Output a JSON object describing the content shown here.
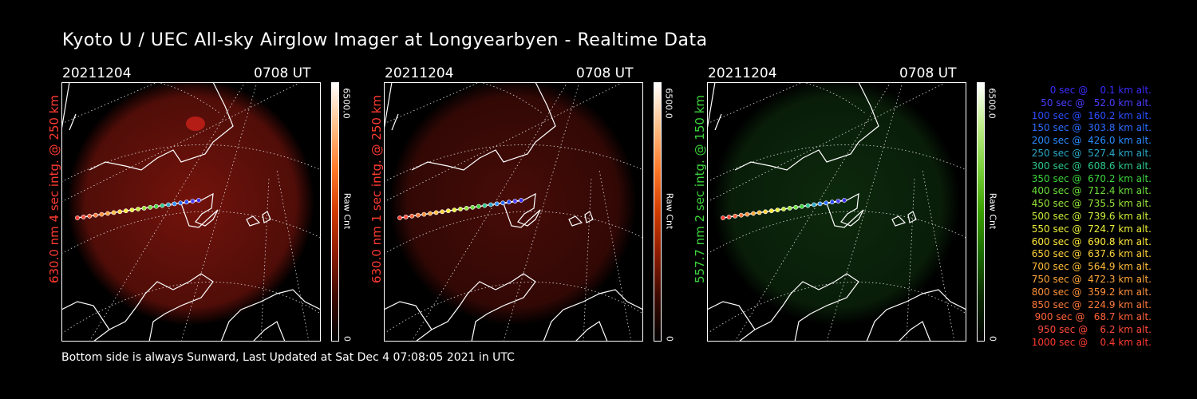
{
  "title": "Kyoto U / UEC All-sky Airglow Imager at Longyearbyen - Realtime Data",
  "footer": "Bottom side is always Sunward, Last Updated at Sat Dec  4 07:08:05 2021 in UTC",
  "panels": [
    {
      "date": "20211204",
      "time": "0708 UT",
      "side_label": "630.0 nm 4 sec intg. @ 250 km",
      "side_color": "#ff3b30",
      "glow_color": "#ff2a1a",
      "glow_strength": 0.45,
      "colorbar_max": "6500.0",
      "colorbar_min": "0",
      "colorbar_unit": "Raw Cnt",
      "colorbar_type": "red"
    },
    {
      "date": "20211204",
      "time": "0708 UT",
      "side_label": "630.0 nm 1 sec intg. @ 250 km",
      "side_color": "#ff3b30",
      "glow_color": "#ff2a1a",
      "glow_strength": 0.28,
      "colorbar_max": "6500.0",
      "colorbar_min": "0",
      "colorbar_unit": "Raw Cnt",
      "colorbar_type": "red"
    },
    {
      "date": "20211204",
      "time": "0708 UT",
      "side_label": "557.7 nm 2 sec intg. @ 150 km",
      "side_color": "#3cd43c",
      "glow_color": "#2a8a2a",
      "glow_strength": 0.3,
      "colorbar_max": "6500.0",
      "colorbar_min": "0",
      "colorbar_unit": "Raw Cnt",
      "colorbar_type": "green"
    }
  ],
  "legend": [
    {
      "text": "0 sec @    0.1 km alt.",
      "color": "#3a2cff"
    },
    {
      "text": "50 sec @   52.0 km alt.",
      "color": "#4a3cff"
    },
    {
      "text": "100 sec @  160.2 km alt.",
      "color": "#2a4cff"
    },
    {
      "text": "150 sec @  303.8 km alt.",
      "color": "#2a6cff"
    },
    {
      "text": "200 sec @  426.0 km alt.",
      "color": "#2a8cff"
    },
    {
      "text": "250 sec @  527.4 km alt.",
      "color": "#2aa8c8"
    },
    {
      "text": "300 sec @  608.6 km alt.",
      "color": "#2ac88a"
    },
    {
      "text": "350 sec @  670.2 km alt.",
      "color": "#3cd43c"
    },
    {
      "text": "400 sec @  712.4 km alt.",
      "color": "#6ade3a"
    },
    {
      "text": "450 sec @  735.5 km alt.",
      "color": "#96e43a"
    },
    {
      "text": "500 sec @  739.6 km alt.",
      "color": "#c8ec3a"
    },
    {
      "text": "550 sec @  724.7 km alt.",
      "color": "#eaf03a"
    },
    {
      "text": "600 sec @  690.8 km alt.",
      "color": "#ffe83a"
    },
    {
      "text": "650 sec @  637.6 km alt.",
      "color": "#ffd23a"
    },
    {
      "text": "700 sec @  564.9 km alt.",
      "color": "#ffbc3a"
    },
    {
      "text": "750 sec @  472.3 km alt.",
      "color": "#ffa63a"
    },
    {
      "text": "800 sec @  359.2 km alt.",
      "color": "#ff903a"
    },
    {
      "text": "850 sec @  224.9 km alt.",
      "color": "#ff7a3a"
    },
    {
      "text": "900 sec @   68.7 km alt.",
      "color": "#ff623a"
    },
    {
      "text": "950 sec @    6.2 km alt.",
      "color": "#ff4a3a"
    },
    {
      "text": "1000 sec @    0.4 km alt.",
      "color": "#ff3a30"
    }
  ]
}
